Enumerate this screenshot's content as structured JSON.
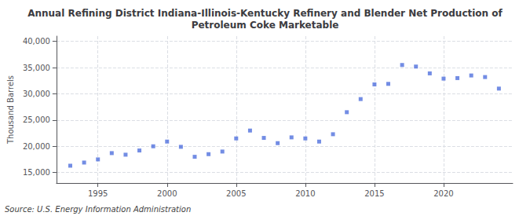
{
  "chart_data": {
    "type": "scatter",
    "title": "Annual Refining District Indiana-Illinois-Kentucky Refinery and Blender Net Production of\nPetroleum Coke Marketable",
    "ylabel": "Thousand Barrels",
    "annotation": "Source: U.S. Energy Information Administration",
    "x": [
      1993,
      1994,
      1995,
      1996,
      1997,
      1998,
      1999,
      2000,
      2001,
      2002,
      2003,
      2004,
      2005,
      2006,
      2007,
      2008,
      2009,
      2010,
      2011,
      2012,
      2013,
      2014,
      2015,
      2016,
      2017,
      2018,
      2019,
      2020,
      2021,
      2022,
      2023,
      2024
    ],
    "values": [
      16300,
      16900,
      17500,
      18700,
      18400,
      19200,
      20000,
      20900,
      19900,
      18000,
      18500,
      19000,
      21500,
      23000,
      21600,
      20600,
      21700,
      21500,
      20900,
      22300,
      26500,
      29000,
      31800,
      31900,
      35500,
      35200,
      33900,
      32900,
      33000,
      33500,
      33200,
      31000
    ],
    "marker": "square",
    "xlim": [
      1992.0,
      2025.0
    ],
    "xticks": [
      1995,
      2000,
      2005,
      2010,
      2015,
      2020
    ],
    "ylim": [
      13000,
      41000
    ],
    "yticks": [
      {
        "value": 15000,
        "label": "15,000"
      },
      {
        "value": 20000,
        "label": "20,000"
      },
      {
        "value": 25000,
        "label": "25,000"
      },
      {
        "value": 30000,
        "label": "30,000"
      },
      {
        "value": 35000,
        "label": "35,000"
      },
      {
        "value": 40000,
        "label": "40,000"
      }
    ],
    "grid": true
  }
}
